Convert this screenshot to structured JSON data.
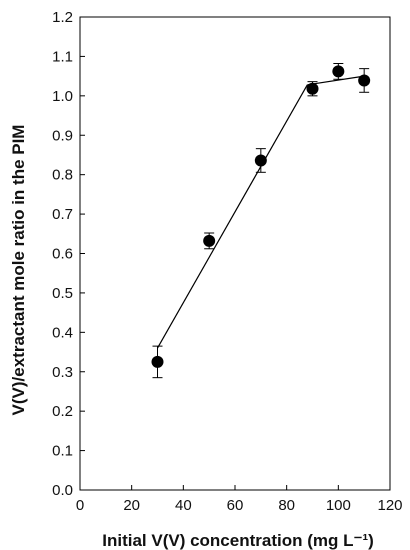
{
  "chart_data": {
    "type": "scatter",
    "title": "",
    "xlabel": "Initial V(V) concentration (mg L⁻¹)",
    "ylabel": "V(V)/extractant mole ratio in the PIM",
    "xlim": [
      0,
      120
    ],
    "ylim": [
      0.0,
      1.2
    ],
    "x_ticks": [
      "0",
      "20",
      "40",
      "60",
      "80",
      "100",
      "120"
    ],
    "y_ticks": [
      "0.0",
      "0.1",
      "0.2",
      "0.3",
      "0.4",
      "0.5",
      "0.6",
      "0.7",
      "0.8",
      "0.9",
      "1.0",
      "1.1",
      "1.2"
    ],
    "grid": false,
    "legend": "none",
    "series": [
      {
        "marker": "circle",
        "color": "#000000",
        "points": [
          {
            "x": 30,
            "y": 0.325,
            "err": 0.04
          },
          {
            "x": 50,
            "y": 0.632,
            "err": 0.02
          },
          {
            "x": 70,
            "y": 0.836,
            "err": 0.03
          },
          {
            "x": 90,
            "y": 1.018,
            "err": 0.018
          },
          {
            "x": 100,
            "y": 1.062,
            "err": 0.02
          },
          {
            "x": 110,
            "y": 1.039,
            "err": 0.03
          }
        ]
      }
    ],
    "trend_lines": [
      {
        "x": [
          30,
          88
        ],
        "y": [
          0.36,
          1.028
        ]
      },
      {
        "x": [
          88,
          110
        ],
        "y": [
          1.028,
          1.05
        ]
      }
    ]
  }
}
